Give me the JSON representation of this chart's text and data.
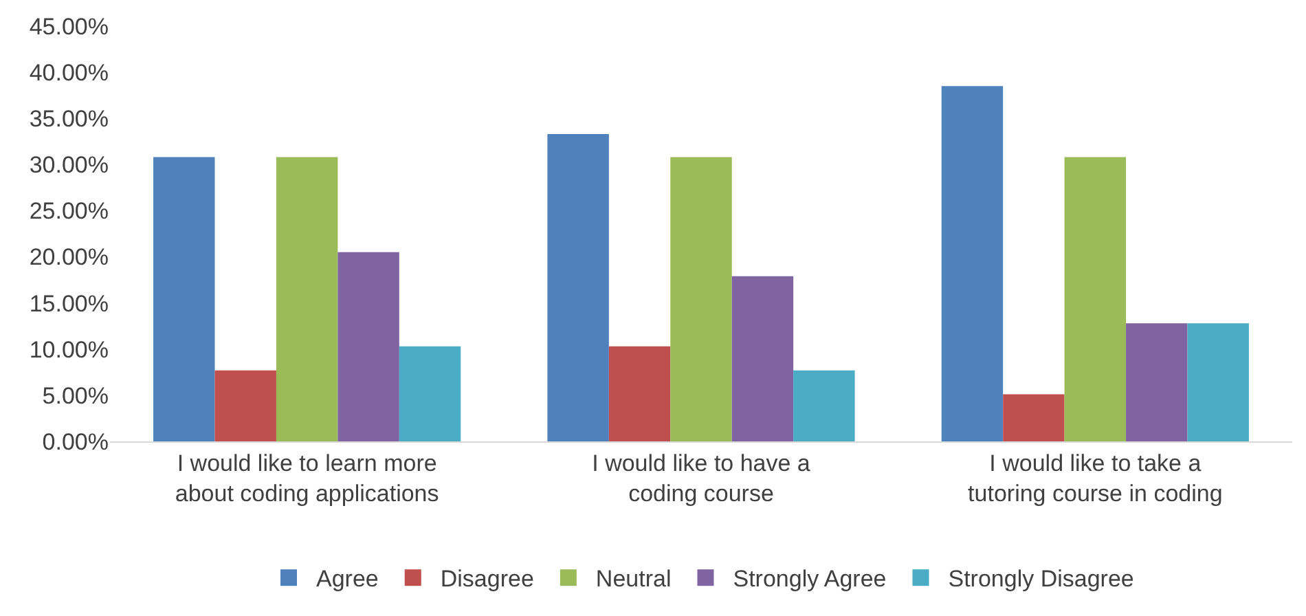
{
  "chart_data": {
    "type": "bar",
    "categories": [
      "I would like to learn more about coding applications",
      "I would like to have a coding course",
      "I would like to take a tutoring course in coding"
    ],
    "series": [
      {
        "name": "Agree",
        "color": "#4f81bd",
        "values": [
          30.8,
          33.3,
          38.5
        ]
      },
      {
        "name": "Disagree",
        "color": "#c0504d",
        "values": [
          7.7,
          10.3,
          5.1
        ]
      },
      {
        "name": "Neutral",
        "color": "#9bbb59",
        "values": [
          30.8,
          30.8,
          30.8
        ]
      },
      {
        "name": "Strongly Agree",
        "color": "#8064a2",
        "values": [
          20.5,
          17.9,
          12.8
        ]
      },
      {
        "name": "Strongly Disagree",
        "color": "#4bacc6",
        "values": [
          10.3,
          7.7,
          12.8
        ]
      }
    ],
    "ylim": [
      0,
      45
    ],
    "yticks": [
      {
        "value": 0,
        "label": "0.00%"
      },
      {
        "value": 5,
        "label": "5.00%"
      },
      {
        "value": 10,
        "label": "10.00%"
      },
      {
        "value": 15,
        "label": "15.00%"
      },
      {
        "value": 20,
        "label": "20.00%"
      },
      {
        "value": 25,
        "label": "25.00%"
      },
      {
        "value": 30,
        "label": "30.00%"
      },
      {
        "value": 35,
        "label": "35.00%"
      },
      {
        "value": 40,
        "label": "40.00%"
      },
      {
        "value": 45,
        "label": "45.00%"
      }
    ],
    "grid": false,
    "legend": "bottom"
  }
}
